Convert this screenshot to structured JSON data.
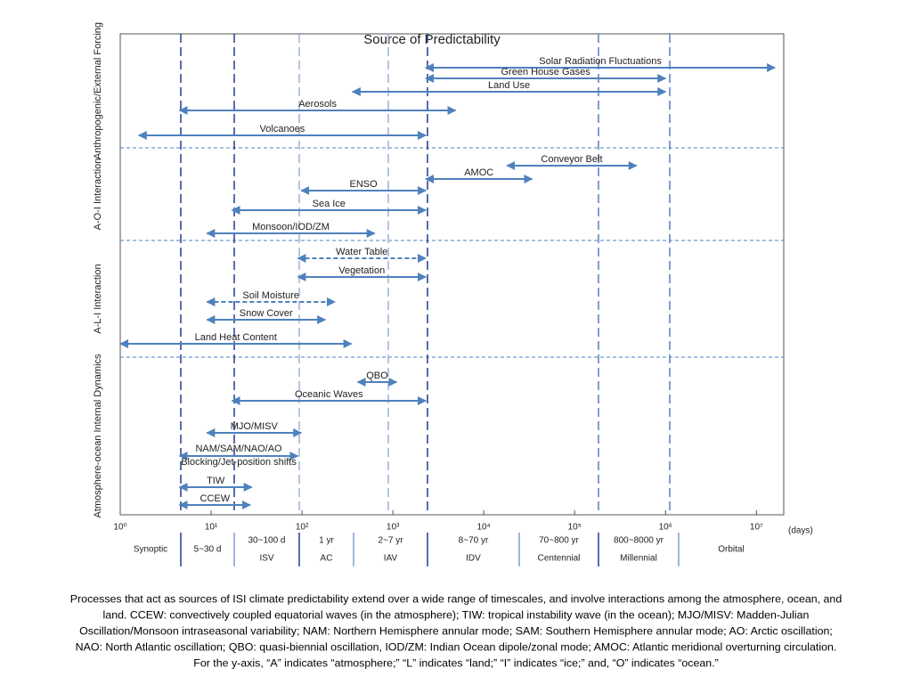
{
  "chart_data": {
    "type": "range",
    "title": "Source of Predictability",
    "x_unit": "(days)",
    "log_x": true,
    "color": "#4f81bd",
    "xlim": [
      1,
      20000000
    ],
    "xticks": [
      {
        "value": 1,
        "label": "10⁰"
      },
      {
        "value": 10,
        "label": "10¹"
      },
      {
        "value": 100,
        "label": "10²"
      },
      {
        "value": 1000,
        "label": "10³"
      },
      {
        "value": 10000,
        "label": "10⁴"
      },
      {
        "value": 100000,
        "label": "10⁵"
      },
      {
        "value": 1000000,
        "label": "10⁶"
      },
      {
        "value": 10000000,
        "label": "10⁷"
      }
    ],
    "groups": [
      {
        "label": "Anthropogenic/External Forcing",
        "items": [
          {
            "name": "Solar Radiation Fluctuations",
            "values": [
              2300,
              16000000
            ]
          },
          {
            "name": "Green House Gases",
            "values": [
              2300,
              1000000
            ]
          },
          {
            "name": "Land Use",
            "values": [
              360,
              1000000
            ]
          },
          {
            "name": "Aerosols",
            "values": [
              4.5,
              4900
            ]
          },
          {
            "name": "Volcanoes",
            "values": [
              1.6,
              2300
            ]
          }
        ]
      },
      {
        "label": "A-O-I Interaction",
        "items": [
          {
            "name": "Conveyor Belt",
            "values": [
              18000,
              480000
            ]
          },
          {
            "name": "AMOC",
            "values": [
              2300,
              34000
            ]
          },
          {
            "name": "ENSO",
            "values": [
              98,
              2300
            ]
          },
          {
            "name": "Sea Ice",
            "values": [
              17,
              2300
            ]
          },
          {
            "name": "Monsoon/IOD/ZM",
            "values": [
              9,
              630
            ]
          }
        ]
      },
      {
        "label": "A-L-I Interaction",
        "items": [
          {
            "name": "Water Table",
            "values": [
              90,
              2300
            ],
            "dashed": true
          },
          {
            "name": "Vegetation",
            "values": [
              90,
              2300
            ]
          },
          {
            "name": "Soil Moisture",
            "values": [
              9,
              230
            ],
            "dashed": true
          },
          {
            "name": "Snow Cover",
            "values": [
              9,
              180
            ]
          },
          {
            "name": "Land Heat Content",
            "values": [
              1,
              350
            ]
          }
        ]
      },
      {
        "label": "Atmosphere-ocean Internal Dynamics",
        "items": [
          {
            "name": "QBO",
            "values": [
              410,
              1100
            ]
          },
          {
            "name": "Oceanic Waves",
            "values": [
              17,
              2300
            ]
          },
          {
            "name": "MJO/MISV",
            "values": [
              9,
              98
            ]
          },
          {
            "name": "NAM/SAM/NAO/AO",
            "subname": "Blocking/Jet-position shifts",
            "values": [
              4.5,
              90
            ]
          },
          {
            "name": "TIW",
            "values": [
              4.5,
              28
            ]
          },
          {
            "name": "CCEW",
            "values": [
              4.5,
              27
            ]
          }
        ]
      }
    ],
    "bands": [
      [
        "Synoptic"
      ],
      [
        "5~30 d"
      ],
      [
        "30~100 d",
        "ISV"
      ],
      [
        "1 yr",
        "AC"
      ],
      [
        "2~7 yr",
        "IAV"
      ],
      [
        "8~70 yr",
        "IDV"
      ],
      [
        "70~800 yr",
        "Centennial"
      ],
      [
        "800~8000 yr",
        "Millennial"
      ],
      [
        "Orbital"
      ]
    ],
    "caption": [
      "Processes that act as sources of ISI climate predictability extend over a wide range of timescales, and involve interactions among the atmosphere, ocean, and",
      "land. CCEW: convectively coupled equatorial waves (in the atmosphere); TIW: tropical instability wave (in the ocean); MJO/MISV: Madden-Julian",
      "Oscillation/Monsoon intraseasonal variability; NAM: Northern Hemisphere annular mode; SAM: Southern Hemisphere annular mode; AO: Arctic oscillation;",
      "NAO: North Atlantic oscillation; QBO: quasi-biennial oscillation, IOD/ZM: Indian Ocean dipole/zonal mode; AMOC: Atlantic meridional overturning circulation.",
      "For the y-axis, “A” indicates “atmosphere;” “L” indicates “land;” “I” indicates “ice;” and, “O” indicates “ocean.”"
    ]
  }
}
